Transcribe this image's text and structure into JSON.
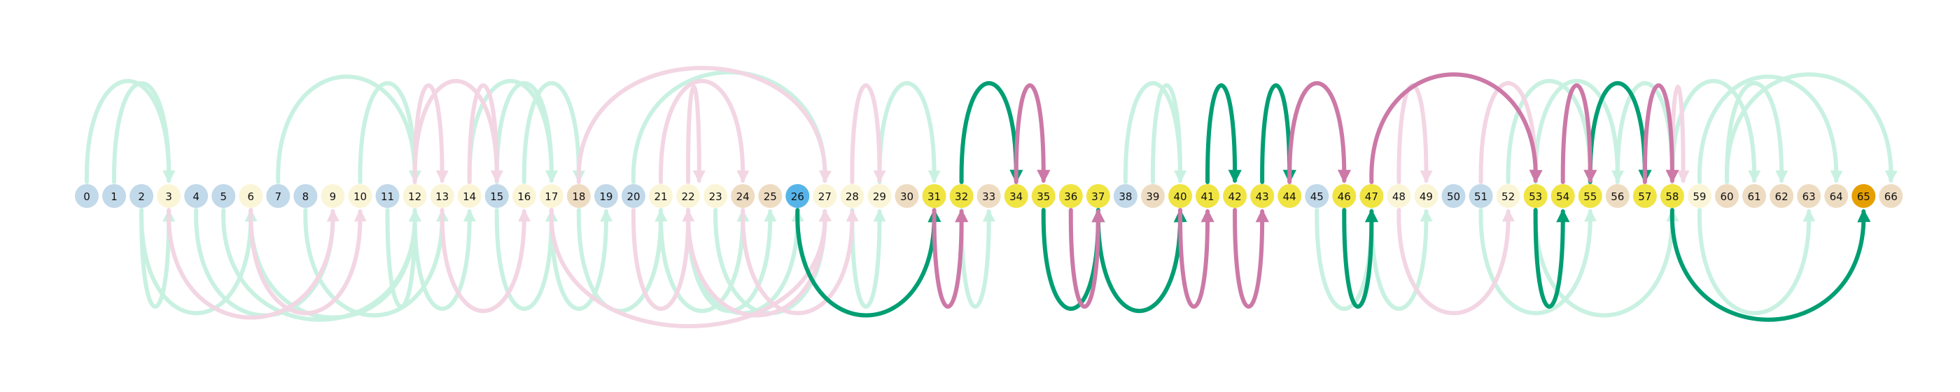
{
  "diagram": {
    "node_count": 67,
    "colors": {
      "start": "#56b4e9",
      "goal": "#e69f00",
      "highlight": "#f0e442",
      "blue_light": "#c2d9ea",
      "cream": "#fbf5d8",
      "tan": "#eedcc2",
      "green_strong": "#009e73",
      "green_light": "#c9f1e2",
      "pink_strong": "#cc79a7",
      "pink_light": "#f3d6e3"
    },
    "nodes": [
      {
        "id": 0,
        "label": "0",
        "cat": "blue_light"
      },
      {
        "id": 1,
        "label": "1",
        "cat": "blue_light"
      },
      {
        "id": 2,
        "label": "2",
        "cat": "blue_light"
      },
      {
        "id": 3,
        "label": "3",
        "cat": "cream"
      },
      {
        "id": 4,
        "label": "4",
        "cat": "blue_light"
      },
      {
        "id": 5,
        "label": "5",
        "cat": "blue_light"
      },
      {
        "id": 6,
        "label": "6",
        "cat": "cream"
      },
      {
        "id": 7,
        "label": "7",
        "cat": "blue_light"
      },
      {
        "id": 8,
        "label": "8",
        "cat": "blue_light"
      },
      {
        "id": 9,
        "label": "9",
        "cat": "cream"
      },
      {
        "id": 10,
        "label": "10",
        "cat": "cream"
      },
      {
        "id": 11,
        "label": "11",
        "cat": "blue_light"
      },
      {
        "id": 12,
        "label": "12",
        "cat": "cream"
      },
      {
        "id": 13,
        "label": "13",
        "cat": "cream"
      },
      {
        "id": 14,
        "label": "14",
        "cat": "cream"
      },
      {
        "id": 15,
        "label": "15",
        "cat": "blue_light"
      },
      {
        "id": 16,
        "label": "16",
        "cat": "cream"
      },
      {
        "id": 17,
        "label": "17",
        "cat": "cream"
      },
      {
        "id": 18,
        "label": "18",
        "cat": "tan"
      },
      {
        "id": 19,
        "label": "19",
        "cat": "blue_light"
      },
      {
        "id": 20,
        "label": "20",
        "cat": "blue_light"
      },
      {
        "id": 21,
        "label": "21",
        "cat": "cream"
      },
      {
        "id": 22,
        "label": "22",
        "cat": "cream"
      },
      {
        "id": 23,
        "label": "23",
        "cat": "cream"
      },
      {
        "id": 24,
        "label": "24",
        "cat": "tan"
      },
      {
        "id": 25,
        "label": "25",
        "cat": "tan"
      },
      {
        "id": 26,
        "label": "26",
        "cat": "start"
      },
      {
        "id": 27,
        "label": "27",
        "cat": "cream"
      },
      {
        "id": 28,
        "label": "28",
        "cat": "cream"
      },
      {
        "id": 29,
        "label": "29",
        "cat": "cream"
      },
      {
        "id": 30,
        "label": "30",
        "cat": "tan"
      },
      {
        "id": 31,
        "label": "31",
        "cat": "highlight"
      },
      {
        "id": 32,
        "label": "32",
        "cat": "highlight"
      },
      {
        "id": 33,
        "label": "33",
        "cat": "tan"
      },
      {
        "id": 34,
        "label": "34",
        "cat": "highlight"
      },
      {
        "id": 35,
        "label": "35",
        "cat": "highlight"
      },
      {
        "id": 36,
        "label": "36",
        "cat": "highlight"
      },
      {
        "id": 37,
        "label": "37",
        "cat": "highlight"
      },
      {
        "id": 38,
        "label": "38",
        "cat": "blue_light"
      },
      {
        "id": 39,
        "label": "39",
        "cat": "tan"
      },
      {
        "id": 40,
        "label": "40",
        "cat": "highlight"
      },
      {
        "id": 41,
        "label": "41",
        "cat": "highlight"
      },
      {
        "id": 42,
        "label": "42",
        "cat": "highlight"
      },
      {
        "id": 43,
        "label": "43",
        "cat": "highlight"
      },
      {
        "id": 44,
        "label": "44",
        "cat": "highlight"
      },
      {
        "id": 45,
        "label": "45",
        "cat": "blue_light"
      },
      {
        "id": 46,
        "label": "46",
        "cat": "highlight"
      },
      {
        "id": 47,
        "label": "47",
        "cat": "highlight"
      },
      {
        "id": 48,
        "label": "48",
        "cat": "cream"
      },
      {
        "id": 49,
        "label": "49",
        "cat": "cream"
      },
      {
        "id": 50,
        "label": "50",
        "cat": "blue_light"
      },
      {
        "id": 51,
        "label": "51",
        "cat": "blue_light"
      },
      {
        "id": 52,
        "label": "52",
        "cat": "cream"
      },
      {
        "id": 53,
        "label": "53",
        "cat": "highlight"
      },
      {
        "id": 54,
        "label": "54",
        "cat": "highlight"
      },
      {
        "id": 55,
        "label": "55",
        "cat": "highlight"
      },
      {
        "id": 56,
        "label": "56",
        "cat": "tan"
      },
      {
        "id": 57,
        "label": "57",
        "cat": "highlight"
      },
      {
        "id": 58,
        "label": "58",
        "cat": "highlight"
      },
      {
        "id": 59,
        "label": "59",
        "cat": "cream"
      },
      {
        "id": 60,
        "label": "60",
        "cat": "tan"
      },
      {
        "id": 61,
        "label": "61",
        "cat": "tan"
      },
      {
        "id": 62,
        "label": "62",
        "cat": "tan"
      },
      {
        "id": 63,
        "label": "63",
        "cat": "tan"
      },
      {
        "id": 64,
        "label": "64",
        "cat": "tan"
      },
      {
        "id": 65,
        "label": "65",
        "cat": "goal"
      },
      {
        "id": 66,
        "label": "66",
        "cat": "tan"
      }
    ],
    "edges": [
      {
        "from": 26,
        "to": 31,
        "side": "below",
        "style": "green_strong"
      },
      {
        "from": 32,
        "to": 34,
        "side": "above",
        "style": "green_strong"
      },
      {
        "from": 35,
        "to": 37,
        "side": "below",
        "style": "green_strong"
      },
      {
        "from": 37,
        "to": 40,
        "side": "below",
        "style": "green_strong"
      },
      {
        "from": 41,
        "to": 42,
        "side": "above",
        "style": "green_strong"
      },
      {
        "from": 43,
        "to": 44,
        "side": "above",
        "style": "green_strong"
      },
      {
        "from": 46,
        "to": 47,
        "side": "below",
        "style": "green_strong"
      },
      {
        "from": 53,
        "to": 54,
        "side": "below",
        "style": "green_strong"
      },
      {
        "from": 55,
        "to": 57,
        "side": "above",
        "style": "green_strong"
      },
      {
        "from": 58,
        "to": 65,
        "side": "below",
        "style": "green_strong"
      },
      {
        "from": 31,
        "to": 32,
        "side": "below",
        "style": "pink_strong"
      },
      {
        "from": 34,
        "to": 35,
        "side": "above",
        "style": "pink_strong"
      },
      {
        "from": 36,
        "to": 37,
        "side": "below",
        "style": "pink_strong"
      },
      {
        "from": 40,
        "to": 41,
        "side": "below",
        "style": "pink_strong"
      },
      {
        "from": 42,
        "to": 43,
        "side": "below",
        "style": "pink_strong"
      },
      {
        "from": 44,
        "to": 46,
        "side": "above",
        "style": "pink_strong"
      },
      {
        "from": 47,
        "to": 53,
        "side": "above",
        "style": "pink_strong"
      },
      {
        "from": 54,
        "to": 55,
        "side": "above",
        "style": "pink_strong"
      },
      {
        "from": 57,
        "to": 58,
        "side": "above",
        "style": "pink_strong"
      },
      {
        "from": 0,
        "to": 3,
        "side": "above",
        "style": "green_light"
      },
      {
        "from": 1,
        "to": 3,
        "side": "above",
        "style": "green_light"
      },
      {
        "from": 2,
        "to": 3,
        "side": "below",
        "style": "green_light"
      },
      {
        "from": 2,
        "to": 6,
        "side": "below",
        "style": "green_light"
      },
      {
        "from": 4,
        "to": 9,
        "side": "below",
        "style": "green_light"
      },
      {
        "from": 6,
        "to": 12,
        "side": "below",
        "style": "green_light"
      },
      {
        "from": 7,
        "to": 12,
        "side": "above",
        "style": "green_light"
      },
      {
        "from": 8,
        "to": 13,
        "side": "below",
        "style": "green_light"
      },
      {
        "from": 10,
        "to": 12,
        "side": "above",
        "style": "green_light"
      },
      {
        "from": 11,
        "to": 12,
        "side": "below",
        "style": "green_light"
      },
      {
        "from": 5,
        "to": 12,
        "side": "below",
        "style": "green_light"
      },
      {
        "from": 12,
        "to": 14,
        "side": "below",
        "style": "green_light"
      },
      {
        "from": 15,
        "to": 17,
        "side": "below",
        "style": "green_light"
      },
      {
        "from": 15,
        "to": 17,
        "side": "above",
        "style": "green_light"
      },
      {
        "from": 16,
        "to": 18,
        "side": "above",
        "style": "green_light"
      },
      {
        "from": 14,
        "to": 17,
        "side": "above",
        "style": "green_light"
      },
      {
        "from": 17,
        "to": 19,
        "side": "below",
        "style": "green_light"
      },
      {
        "from": 18,
        "to": 21,
        "side": "below",
        "style": "green_light"
      },
      {
        "from": 20,
        "to": 27,
        "side": "above",
        "style": "green_light"
      },
      {
        "from": 21,
        "to": 24,
        "side": "below",
        "style": "green_light"
      },
      {
        "from": 22,
        "to": 25,
        "side": "below",
        "style": "green_light"
      },
      {
        "from": 22,
        "to": 26,
        "side": "below",
        "style": "green_light"
      },
      {
        "from": 23,
        "to": 27,
        "side": "below",
        "style": "green_light"
      },
      {
        "from": 28,
        "to": 29,
        "side": "below",
        "style": "green_light"
      },
      {
        "from": 29,
        "to": 31,
        "side": "above",
        "style": "green_light"
      },
      {
        "from": 32,
        "to": 33,
        "side": "below",
        "style": "green_light"
      },
      {
        "from": 38,
        "to": 40,
        "side": "above",
        "style": "green_light"
      },
      {
        "from": 39,
        "to": 40,
        "side": "above",
        "style": "green_light"
      },
      {
        "from": 45,
        "to": 47,
        "side": "below",
        "style": "green_light"
      },
      {
        "from": 47,
        "to": 49,
        "side": "below",
        "style": "green_light"
      },
      {
        "from": 51,
        "to": 55,
        "side": "below",
        "style": "green_light"
      },
      {
        "from": 52,
        "to": 55,
        "side": "above",
        "style": "green_light"
      },
      {
        "from": 53,
        "to": 58,
        "side": "below",
        "style": "green_light"
      },
      {
        "from": 53,
        "to": 56,
        "side": "above",
        "style": "green_light"
      },
      {
        "from": 56,
        "to": 58,
        "side": "above",
        "style": "green_light"
      },
      {
        "from": 58,
        "to": 61,
        "side": "above",
        "style": "green_light"
      },
      {
        "from": 59,
        "to": 64,
        "side": "above",
        "style": "green_light"
      },
      {
        "from": 60,
        "to": 62,
        "side": "above",
        "style": "green_light"
      },
      {
        "from": 60,
        "to": 66,
        "side": "above",
        "style": "green_light"
      },
      {
        "from": 59,
        "to": 63,
        "side": "below",
        "style": "green_light"
      },
      {
        "from": 3,
        "to": 9,
        "side": "below",
        "style": "pink_light"
      },
      {
        "from": 6,
        "to": 10,
        "side": "below",
        "style": "pink_light"
      },
      {
        "from": 12,
        "to": 13,
        "side": "above",
        "style": "pink_light"
      },
      {
        "from": 12,
        "to": 15,
        "side": "above",
        "style": "pink_light"
      },
      {
        "from": 14,
        "to": 15,
        "side": "above",
        "style": "pink_light"
      },
      {
        "from": 13,
        "to": 16,
        "side": "below",
        "style": "pink_light"
      },
      {
        "from": 17,
        "to": 27,
        "side": "below",
        "style": "pink_light"
      },
      {
        "from": 18,
        "to": 27,
        "side": "above",
        "style": "pink_light"
      },
      {
        "from": 20,
        "to": 22,
        "side": "below",
        "style": "pink_light"
      },
      {
        "from": 22,
        "to": 27,
        "side": "below",
        "style": "pink_light"
      },
      {
        "from": 22,
        "to": 22.4,
        "side": "above",
        "style": "pink_light"
      },
      {
        "from": 21,
        "to": 24,
        "side": "above",
        "style": "pink_light"
      },
      {
        "from": 24,
        "to": 28,
        "side": "below",
        "style": "pink_light"
      },
      {
        "from": 28,
        "to": 29,
        "side": "above",
        "style": "pink_light"
      },
      {
        "from": 48,
        "to": 49,
        "side": "above",
        "style": "pink_light"
      },
      {
        "from": 48,
        "to": 52,
        "side": "below",
        "style": "pink_light"
      },
      {
        "from": 51,
        "to": 53,
        "side": "above",
        "style": "pink_light"
      },
      {
        "from": 58,
        "to": 58.4,
        "side": "above",
        "style": "pink_light"
      }
    ]
  }
}
